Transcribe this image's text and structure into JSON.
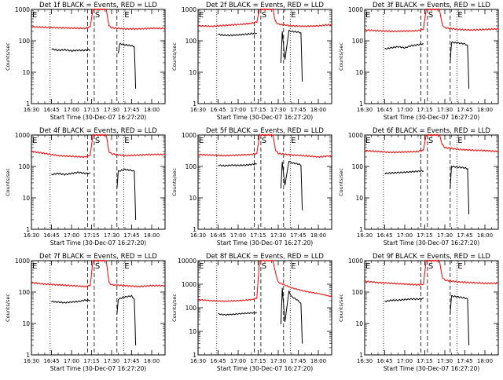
{
  "xlabel": "Start Time (30-Dec-07 16:27:20)",
  "ylabel": "Counts/sec",
  "x_tick_labels": [
    "16:30",
    "16:45",
    "17:00",
    "17:15",
    "17:30",
    "17:45",
    "18:00"
  ],
  "x_ticks_minutes": [
    0,
    15,
    30,
    45,
    60,
    75,
    90
  ],
  "xlim_minutes": [
    0,
    100
  ],
  "x_origin_time": "16:30",
  "y_scale": "log",
  "colors": {
    "events": "#000000",
    "lld": "#ff0000"
  },
  "markers": [
    {
      "label": "E",
      "minute": 0,
      "style": "dashed"
    },
    {
      "label": "",
      "minute": 14,
      "style": "dotted"
    },
    {
      "label": "",
      "minute": 42,
      "style": "dashed"
    },
    {
      "label": "S",
      "minute": 47,
      "style": "dashed"
    },
    {
      "label": "",
      "minute": 64,
      "style": "dashed"
    },
    {
      "label": "E",
      "minute": 69,
      "style": "dotted"
    }
  ],
  "chart_data": [
    {
      "type": "line",
      "title": "Det 1f BLACK = Events, RED = LLD",
      "ylim": [
        1,
        1000
      ],
      "y_tick_labels": [
        "1",
        "10",
        "100",
        "1000"
      ],
      "series": [
        {
          "name": "LLD",
          "segments": [
            {
              "x": [
                0,
                10,
                20,
                30,
                40,
                44,
                46,
                56,
                58,
                60,
                70,
                80,
                90,
                100
              ],
              "y": [
                280,
                270,
                260,
                255,
                250,
                280,
                1000,
                1000,
                300,
                260,
                240,
                240,
                250,
                250
              ]
            }
          ]
        },
        {
          "name": "Events",
          "segments": [
            {
              "x": [
                15,
                20,
                25,
                30,
                35,
                40,
                44
              ],
              "y": [
                55,
                50,
                52,
                48,
                50,
                50,
                52
              ]
            },
            {
              "x": [
                65,
                66,
                70,
                75,
                77,
                78
              ],
              "y": [
                40,
                80,
                75,
                70,
                65,
                3
              ]
            }
          ]
        }
      ]
    },
    {
      "type": "line",
      "title": "Det 2f BLACK = Events, RED = LLD",
      "ylim": [
        1,
        1000
      ],
      "y_tick_labels": [
        "1",
        "10",
        "100",
        "1000"
      ],
      "series": [
        {
          "name": "LLD",
          "segments": [
            {
              "x": [
                0,
                10,
                20,
                30,
                40,
                44,
                46,
                56,
                58,
                60,
                70,
                80,
                90,
                100
              ],
              "y": [
                300,
                290,
                310,
                330,
                360,
                400,
                1000,
                1000,
                400,
                340,
                300,
                290,
                300,
                330
              ]
            }
          ]
        },
        {
          "name": "Events",
          "segments": [
            {
              "x": [
                15,
                20,
                25,
                30,
                35,
                40,
                44
              ],
              "y": [
                160,
                150,
                150,
                155,
                160,
                170,
                175
              ]
            },
            {
              "x": [
                62,
                63,
                65,
                68,
                70,
                75,
                77,
                78
              ],
              "y": [
                20,
                200,
                25,
                210,
                200,
                190,
                180,
                5
              ]
            }
          ]
        }
      ]
    },
    {
      "type": "line",
      "title": "Det 3f BLACK = Events, RED = LLD",
      "ylim": [
        1,
        1000
      ],
      "y_tick_labels": [
        "1",
        "10",
        "100",
        "1000"
      ],
      "series": [
        {
          "name": "LLD",
          "segments": [
            {
              "x": [
                0,
                10,
                20,
                30,
                40,
                44,
                46,
                56,
                58,
                60,
                70,
                80,
                90,
                100
              ],
              "y": [
                220,
                210,
                200,
                205,
                210,
                240,
                1000,
                1000,
                330,
                260,
                230,
                220,
                230,
                240
              ]
            }
          ]
        },
        {
          "name": "Events",
          "segments": [
            {
              "x": [
                15,
                20,
                25,
                30,
                35,
                40,
                44
              ],
              "y": [
                55,
                60,
                65,
                60,
                70,
                75,
                80
              ]
            },
            {
              "x": [
                64,
                65,
                70,
                75,
                77,
                78
              ],
              "y": [
                20,
                90,
                85,
                80,
                70,
                3
              ]
            }
          ]
        }
      ]
    },
    {
      "type": "line",
      "title": "Det 4f BLACK = Events, RED = LLD",
      "ylim": [
        1,
        1000
      ],
      "y_tick_labels": [
        "1",
        "10",
        "100",
        "1000"
      ],
      "series": [
        {
          "name": "LLD",
          "segments": [
            {
              "x": [
                0,
                10,
                20,
                30,
                40,
                44,
                46,
                56,
                58,
                60,
                70,
                80,
                90,
                100
              ],
              "y": [
                300,
                260,
                220,
                210,
                200,
                230,
                1000,
                1000,
                300,
                250,
                220,
                230,
                240,
                240
              ]
            }
          ]
        },
        {
          "name": "Events",
          "segments": [
            {
              "x": [
                15,
                20,
                25,
                30,
                35,
                40,
                44
              ],
              "y": [
                55,
                60,
                55,
                60,
                65,
                60,
                60
              ]
            },
            {
              "x": [
                64,
                65,
                70,
                75,
                77,
                78
              ],
              "y": [
                20,
                70,
                80,
                75,
                70,
                2
              ]
            }
          ]
        }
      ]
    },
    {
      "type": "line",
      "title": "Det 5f BLACK = Events, RED = LLD",
      "ylim": [
        1,
        1000
      ],
      "y_tick_labels": [
        "1",
        "10",
        "100",
        "1000"
      ],
      "series": [
        {
          "name": "LLD",
          "segments": [
            {
              "x": [
                0,
                10,
                20,
                30,
                40,
                44,
                46,
                56,
                58,
                60,
                70,
                80,
                90,
                100
              ],
              "y": [
                240,
                230,
                220,
                230,
                240,
                260,
                1000,
                1000,
                330,
                260,
                230,
                220,
                200,
                220
              ]
            }
          ]
        },
        {
          "name": "Events",
          "segments": [
            {
              "x": [
                15,
                20,
                25,
                30,
                35,
                40,
                44
              ],
              "y": [
                110,
                105,
                110,
                108,
                110,
                115,
                120
              ]
            },
            {
              "x": [
                62,
                63,
                65,
                68,
                70,
                75,
                77,
                78
              ],
              "y": [
                20,
                140,
                25,
                150,
                130,
                120,
                110,
                4
              ]
            }
          ]
        }
      ]
    },
    {
      "type": "line",
      "title": "Det 6f BLACK = Events, RED = LLD",
      "ylim": [
        1,
        1000
      ],
      "y_tick_labels": [
        "1",
        "10",
        "100",
        "1000"
      ],
      "series": [
        {
          "name": "LLD",
          "segments": [
            {
              "x": [
                0,
                10,
                20,
                30,
                40,
                44,
                46,
                56,
                58,
                60,
                70,
                80,
                90,
                100
              ],
              "y": [
                320,
                300,
                280,
                290,
                300,
                330,
                1000,
                1000,
                500,
                400,
                350,
                330,
                320,
                300
              ]
            }
          ]
        },
        {
          "name": "Events",
          "segments": [
            {
              "x": [
                15,
                20,
                25,
                30,
                35,
                40,
                44
              ],
              "y": [
                60,
                62,
                64,
                65,
                68,
                70,
                72
              ]
            },
            {
              "x": [
                64,
                65,
                70,
                75,
                77,
                78
              ],
              "y": [
                20,
                100,
                95,
                90,
                85,
                3
              ]
            }
          ]
        }
      ]
    },
    {
      "type": "line",
      "title": "Det 7f BLACK = Events, RED = LLD",
      "ylim": [
        1,
        1000
      ],
      "y_tick_labels": [
        "1",
        "10",
        "100",
        "1000"
      ],
      "series": [
        {
          "name": "LLD",
          "segments": [
            {
              "x": [
                0,
                10,
                20,
                30,
                40,
                44,
                46,
                56,
                58,
                60,
                70,
                80,
                90,
                100
              ],
              "y": [
                200,
                180,
                170,
                160,
                150,
                160,
                1000,
                1000,
                200,
                170,
                160,
                150,
                160,
                160
              ]
            }
          ]
        },
        {
          "name": "Events",
          "segments": [
            {
              "x": [
                15,
                20,
                25,
                30,
                35,
                40,
                44
              ],
              "y": [
                50,
                48,
                46,
                48,
                50,
                55,
                55
              ]
            },
            {
              "x": [
                64,
                65,
                70,
                75,
                77,
                78
              ],
              "y": [
                20,
                60,
                70,
                75,
                60,
                2
              ]
            }
          ]
        }
      ]
    },
    {
      "type": "line",
      "title": "Det 8f BLACK = Events, RED = LLD",
      "ylim": [
        1,
        10000
      ],
      "y_tick_labels": [
        "1",
        "10",
        "100",
        "1000",
        "10000"
      ],
      "series": [
        {
          "name": "LLD",
          "segments": [
            {
              "x": [
                0,
                10,
                20,
                30,
                40,
                44,
                46,
                56,
                58,
                60,
                70,
                80,
                90,
                100
              ],
              "y": [
                220,
                200,
                190,
                200,
                220,
                260,
                10000,
                10000,
                3000,
                1200,
                700,
                500,
                400,
                300
              ]
            }
          ]
        },
        {
          "name": "Events",
          "segments": [
            {
              "x": [
                15,
                20,
                25,
                30,
                35,
                40,
                44
              ],
              "y": [
                55,
                50,
                52,
                55,
                58,
                60,
                62
              ]
            },
            {
              "x": [
                62,
                63,
                65,
                68,
                70,
                75,
                77,
                78
              ],
              "y": [
                20,
                700,
                25,
                500,
                300,
                200,
                150,
                3
              ]
            }
          ]
        }
      ]
    },
    {
      "type": "line",
      "title": "Det 9f BLACK = Events, RED = LLD",
      "ylim": [
        1,
        1000
      ],
      "y_tick_labels": [
        "1",
        "10",
        "100",
        "1000"
      ],
      "series": [
        {
          "name": "LLD",
          "segments": [
            {
              "x": [
                0,
                10,
                20,
                30,
                40,
                44,
                46,
                56,
                58,
                60,
                70,
                80,
                90,
                100
              ],
              "y": [
                220,
                200,
                190,
                180,
                170,
                180,
                1000,
                1000,
                300,
                240,
                210,
                200,
                190,
                190
              ]
            }
          ]
        },
        {
          "name": "Events",
          "segments": [
            {
              "x": [
                15,
                20,
                25,
                30,
                35,
                40,
                44
              ],
              "y": [
                50,
                55,
                55,
                58,
                60,
                60,
                62
              ]
            },
            {
              "x": [
                64,
                65,
                70,
                75,
                77,
                78
              ],
              "y": [
                20,
                75,
                70,
                65,
                60,
                2
              ]
            }
          ]
        }
      ]
    }
  ]
}
